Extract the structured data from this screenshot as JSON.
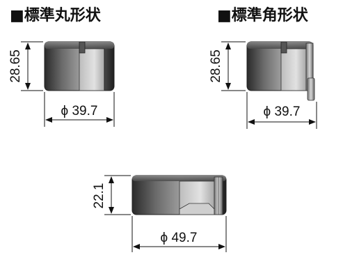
{
  "headings": {
    "round": "■標準丸形状",
    "square": "■標準角形状"
  },
  "dimensions": {
    "round_height": "28.65",
    "round_diameter": "ϕ 39.7",
    "square_height": "28.65",
    "square_diameter": "ϕ 39.7",
    "large_height": "22.1",
    "large_diameter": "ϕ 49.7"
  }
}
